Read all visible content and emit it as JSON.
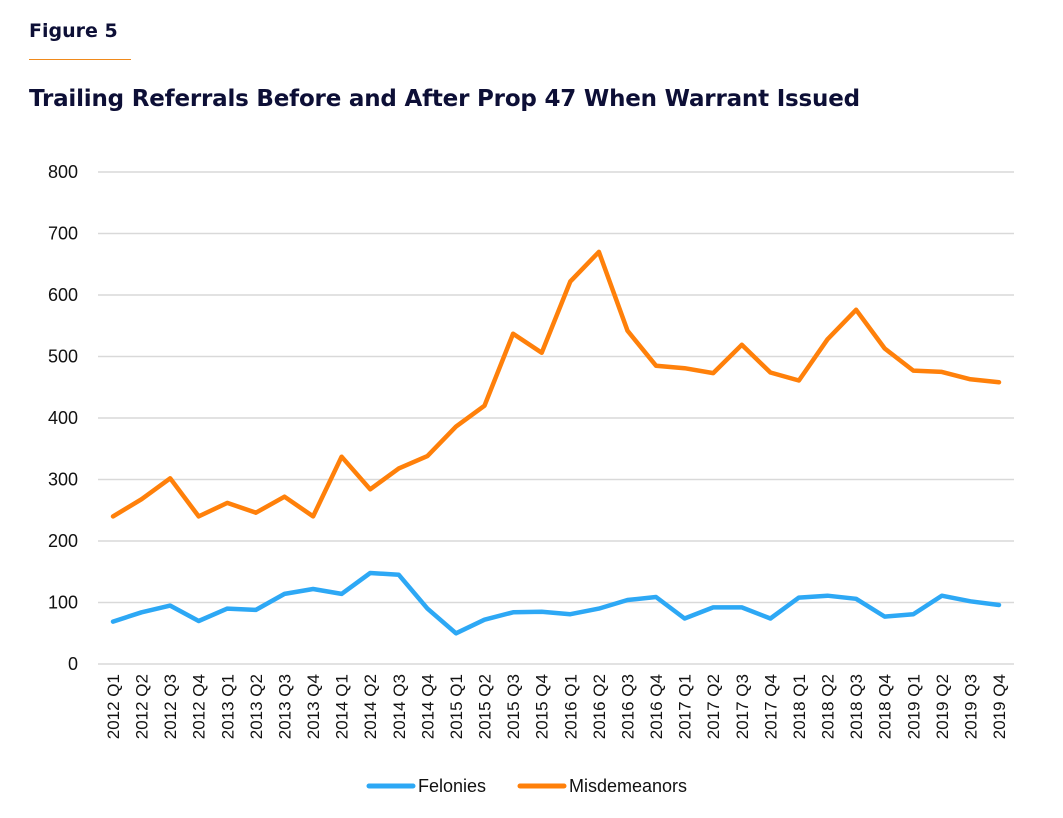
{
  "figure_label": "Figure 5",
  "colors": {
    "felonies": "#2da8f5",
    "misdemeanors": "#ff800a",
    "grid": "#d9d9d9",
    "title": "#0d0f36",
    "accent_rule": "#f08a1c"
  },
  "chart_data": {
    "type": "line",
    "title": "Trailing Referrals Before and After Prop 47 When Warrant Issued",
    "xlabel": "",
    "ylabel": "",
    "ylim": [
      0,
      800
    ],
    "yticks": [
      0,
      100,
      200,
      300,
      400,
      500,
      600,
      700,
      800
    ],
    "grid": true,
    "legend_position": "bottom-center",
    "categories": [
      "2012 Q1",
      "2012 Q2",
      "2012 Q3",
      "2012 Q4",
      "2013 Q1",
      "2013 Q2",
      "2013 Q3",
      "2013 Q4",
      "2014 Q1",
      "2014 Q2",
      "2014 Q3",
      "2014 Q4",
      "2015 Q1",
      "2015 Q2",
      "2015 Q3",
      "2015 Q4",
      "2016 Q1",
      "2016 Q2",
      "2016 Q3",
      "2016 Q4",
      "2017 Q1",
      "2017 Q2",
      "2017 Q3",
      "2017 Q4",
      "2018 Q1",
      "2018 Q2",
      "2018 Q3",
      "2018 Q4",
      "2019 Q1",
      "2019 Q2",
      "2019 Q3",
      "2019 Q4"
    ],
    "series": [
      {
        "name": "Felonies",
        "color": "#2da8f5",
        "values": [
          69,
          84,
          95,
          70,
          90,
          88,
          114,
          122,
          114,
          148,
          145,
          90,
          50,
          72,
          84,
          85,
          81,
          90,
          104,
          109,
          74,
          92,
          92,
          74,
          108,
          111,
          106,
          77,
          81,
          111,
          102,
          96
        ]
      },
      {
        "name": "Misdemeanors",
        "color": "#ff800a",
        "values": [
          240,
          268,
          302,
          240,
          262,
          246,
          272,
          240,
          337,
          284,
          318,
          338,
          386,
          420,
          537,
          506,
          622,
          670,
          542,
          485,
          481,
          473,
          519,
          474,
          461,
          528,
          576,
          513,
          477,
          475,
          463,
          458
        ]
      }
    ]
  }
}
